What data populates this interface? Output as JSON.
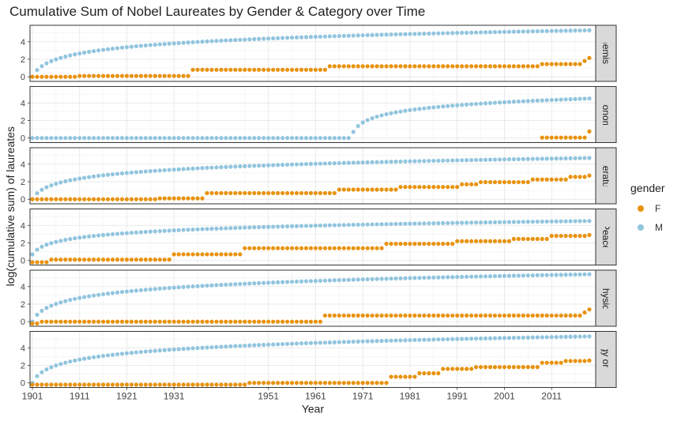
{
  "chart_data": {
    "type": "scatter",
    "title": "Cumulative Sum of Nobel Laureates by Gender & Category over Time",
    "xlabel": "Year",
    "ylabel": "log(cumulative sum) of laureates",
    "xlim": [
      1901,
      2019
    ],
    "ylim": [
      -0.25,
      5.6
    ],
    "x_ticks": [
      1901,
      1911,
      1921,
      1931,
      1951,
      1961,
      1971,
      1981,
      1991,
      2001,
      2011
    ],
    "y_ticks": [
      0,
      2,
      4
    ],
    "legend": {
      "title": "gender",
      "position": "right"
    },
    "series_names": [
      "F",
      "M"
    ],
    "colors": {
      "F": "#E8920C",
      "M": "#92C5DE"
    },
    "facets": [
      {
        "label": "Chemistry",
        "M": {
          "start": 1901,
          "end": 2019,
          "y0": 0.0,
          "y_end": 5.3
        },
        "F": [
          [
            1901,
            0
          ],
          [
            1911,
            0.1
          ],
          [
            1935,
            0.8
          ],
          [
            1964,
            1.2
          ],
          [
            2009,
            1.45
          ],
          [
            2018,
            1.8
          ],
          [
            2019,
            2.15
          ]
        ]
      },
      {
        "label": "Economic",
        "M": {
          "start": 1969,
          "end": 2019,
          "y0": 0.7,
          "y_end": 4.5
        },
        "F": [
          [
            2009,
            0.05
          ],
          [
            2019,
            0.75
          ]
        ]
      },
      {
        "label": "Literature",
        "M": {
          "start": 1901,
          "end": 2019,
          "y0": 0.0,
          "y_end": 4.7
        },
        "F": [
          [
            1901,
            0
          ],
          [
            1909,
            0
          ],
          [
            1928,
            0.1
          ],
          [
            1938,
            0.7
          ],
          [
            1966,
            1.1
          ],
          [
            1979,
            1.4
          ],
          [
            1992,
            1.7
          ],
          [
            1996,
            1.95
          ],
          [
            2007,
            2.25
          ],
          [
            2015,
            2.55
          ],
          [
            2019,
            2.7
          ]
        ]
      },
      {
        "label": "Peace",
        "M": {
          "start": 1901,
          "end": 2019,
          "y0": 0.69,
          "y_end": 4.5
        },
        "F": [
          [
            1901,
            -0.2
          ],
          [
            1905,
            0.1
          ],
          [
            1931,
            0.7
          ],
          [
            1946,
            1.4
          ],
          [
            1976,
            1.9
          ],
          [
            1991,
            2.2
          ],
          [
            2003,
            2.45
          ],
          [
            2011,
            2.8
          ],
          [
            2019,
            2.9
          ]
        ]
      },
      {
        "label": "Physics",
        "M": {
          "start": 1901,
          "end": 2019,
          "y0": 0.0,
          "y_end": 5.4
        },
        "F": [
          [
            1901,
            -0.2
          ],
          [
            1903,
            0.0
          ],
          [
            1963,
            0.7
          ],
          [
            2018,
            1.05
          ],
          [
            2019,
            1.4
          ]
        ]
      },
      {
        "label": "Physiology or Medicine",
        "M": {
          "start": 1901,
          "end": 2019,
          "y0": 0.0,
          "y_end": 5.3
        },
        "F": [
          [
            1901,
            -0.2
          ],
          [
            1947,
            0.0
          ],
          [
            1977,
            0.7
          ],
          [
            1983,
            1.1
          ],
          [
            1988,
            1.6
          ],
          [
            1995,
            1.8
          ],
          [
            2009,
            2.3
          ],
          [
            2014,
            2.5
          ],
          [
            2019,
            2.55
          ]
        ]
      }
    ]
  }
}
